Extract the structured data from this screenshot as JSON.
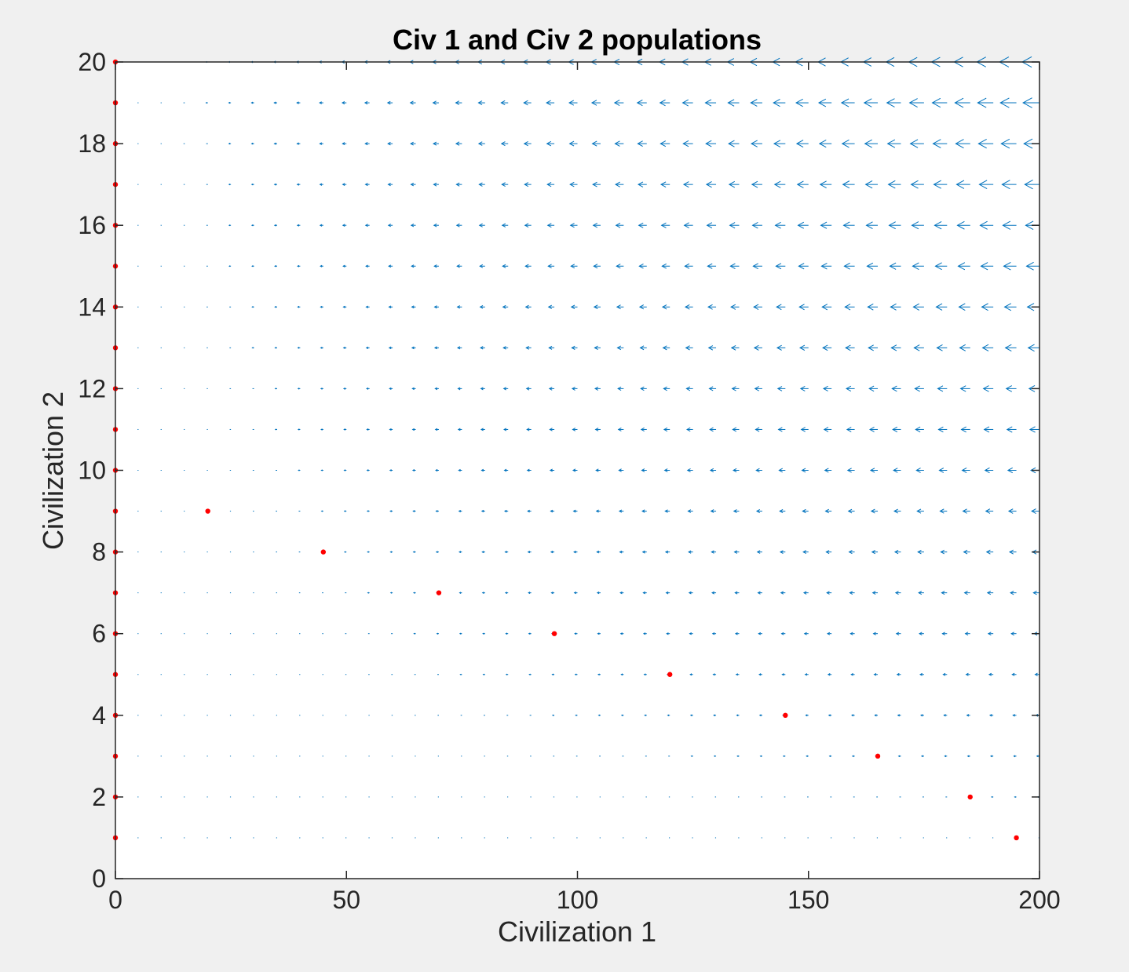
{
  "chart_data": {
    "type": "scatter",
    "title": "Civ 1 and Civ 2 populations",
    "xlabel": "Civilization 1",
    "ylabel": "Civilization 2",
    "xlim": [
      0,
      200
    ],
    "ylim": [
      0,
      20
    ],
    "xticks": [
      0,
      50,
      100,
      150,
      200
    ],
    "yticks": [
      0,
      2,
      4,
      6,
      8,
      10,
      12,
      14,
      16,
      18,
      20
    ],
    "grid": false,
    "legend": "none",
    "colors": {
      "quiver": "#0072bd",
      "points": "#ff0000",
      "axes": "#262626",
      "background": "#f0f0f0",
      "plot_area": "#ffffff"
    },
    "series": [
      {
        "type": "quiver",
        "x_grid": {
          "start": 0,
          "stop": 200,
          "step": 5
        },
        "y_grid": {
          "start": 1,
          "stop": 20,
          "step": 1
        },
        "direction": "negative-x",
        "magnitude_model": "proportional to x * y (largest near x=200, y=20)"
      },
      {
        "type": "scatter",
        "x": [
          0,
          0,
          0,
          0,
          0,
          0,
          0,
          0,
          0,
          0,
          0,
          0,
          0,
          0,
          0,
          0,
          0,
          0,
          0,
          0,
          20,
          45,
          70,
          95,
          120,
          145,
          165,
          185,
          195
        ],
        "y": [
          1,
          2,
          3,
          4,
          5,
          6,
          7,
          8,
          9,
          10,
          11,
          12,
          13,
          14,
          15,
          16,
          17,
          18,
          19,
          20,
          9,
          8,
          7,
          6,
          5,
          4,
          3,
          2,
          1
        ]
      }
    ]
  }
}
